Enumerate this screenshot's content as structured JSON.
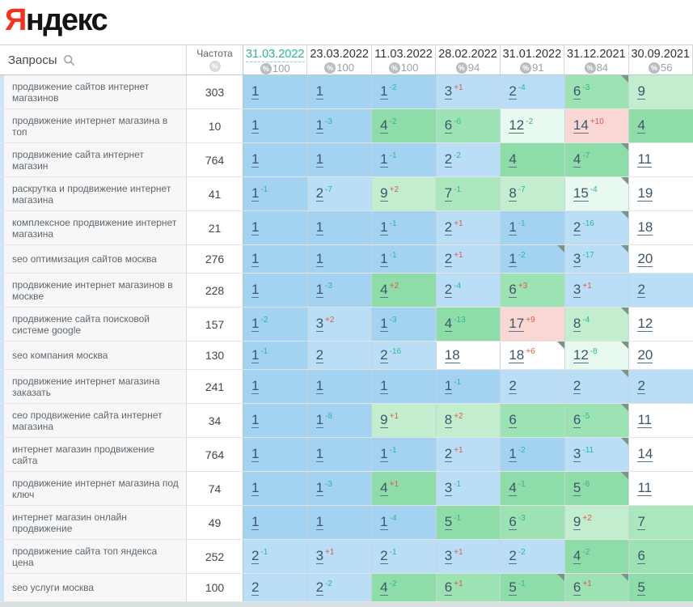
{
  "logo": {
    "first_letter": "Я",
    "rest": "ндекс"
  },
  "colors": {
    "b1": "#a4d3f1",
    "b2": "#b9def6",
    "g4": "#8edca8",
    "g6": "#9de2b3",
    "g7": "#abe6bd",
    "g8": "#c3edcf",
    "m": "#e8f9ef",
    "w": "#ffffff",
    "p": "#f8d7d4",
    "delta_improve": "#2fb59b",
    "delta_drop": "#e0584d",
    "selected_date": "#2bb39c",
    "row_accent": "#cfe3f5",
    "corner_marker": "#7a9587"
  },
  "table": {
    "queries_header": "Запросы",
    "freq_header": "Частота",
    "columns": [
      {
        "date": "31.03.2022",
        "percent": "100",
        "selected": true
      },
      {
        "date": "23.03.2022",
        "percent": "100",
        "selected": false
      },
      {
        "date": "11.03.2022",
        "percent": "100",
        "selected": false
      },
      {
        "date": "28.02.2022",
        "percent": "94",
        "selected": false
      },
      {
        "date": "31.01.2022",
        "percent": "91",
        "selected": false
      },
      {
        "date": "31.12.2021",
        "percent": "84",
        "selected": false
      },
      {
        "date": "30.09.2021",
        "percent": "56",
        "selected": false
      }
    ],
    "rows": [
      {
        "query": "продвижение сайтов интернет магазинов",
        "freq": "303",
        "cells": [
          {
            "v": "1",
            "bg": "b1"
          },
          {
            "v": "1",
            "bg": "b1"
          },
          {
            "v": "1",
            "d": "-2",
            "bg": "b1"
          },
          {
            "v": "3",
            "d": "+1",
            "bg": "b2"
          },
          {
            "v": "2",
            "d": "-4",
            "bg": "b2"
          },
          {
            "v": "6",
            "d": "-3",
            "bg": "g6",
            "t": 1
          },
          {
            "v": "9",
            "bg": "g8"
          }
        ]
      },
      {
        "query": "продвижение интернет магазина в топ",
        "freq": "10",
        "cells": [
          {
            "v": "1",
            "bg": "b1"
          },
          {
            "v": "1",
            "d": "-3",
            "bg": "b1"
          },
          {
            "v": "4",
            "d": "-2",
            "bg": "g4"
          },
          {
            "v": "6",
            "d": "-6",
            "bg": "g6"
          },
          {
            "v": "12",
            "d": "-2",
            "bg": "m"
          },
          {
            "v": "14",
            "d": "+10",
            "bg": "p"
          },
          {
            "v": "4",
            "bg": "g4"
          }
        ]
      },
      {
        "query": "продвижение сайта интернет магазин",
        "freq": "764",
        "cells": [
          {
            "v": "1",
            "bg": "b1"
          },
          {
            "v": "1",
            "bg": "b1"
          },
          {
            "v": "1",
            "d": "-1",
            "bg": "b1"
          },
          {
            "v": "2",
            "d": "-2",
            "bg": "b2"
          },
          {
            "v": "4",
            "bg": "g4"
          },
          {
            "v": "4",
            "d": "-7",
            "bg": "g4",
            "t": 1
          },
          {
            "v": "11",
            "bg": "w"
          }
        ]
      },
      {
        "query": "раскрутка и продвижение интернет магазина",
        "freq": "41",
        "cells": [
          {
            "v": "1",
            "d": "-1",
            "bg": "b1"
          },
          {
            "v": "2",
            "d": "-7",
            "bg": "b2"
          },
          {
            "v": "9",
            "d": "+2",
            "bg": "g8"
          },
          {
            "v": "7",
            "d": "-1",
            "bg": "g7"
          },
          {
            "v": "8",
            "d": "-7",
            "bg": "g8"
          },
          {
            "v": "15",
            "d": "-4",
            "bg": "m",
            "t": 1
          },
          {
            "v": "19",
            "bg": "w"
          }
        ]
      },
      {
        "query": "комплексное продвижение интернет магазина",
        "freq": "21",
        "cells": [
          {
            "v": "1",
            "bg": "b1"
          },
          {
            "v": "1",
            "bg": "b1"
          },
          {
            "v": "1",
            "d": "-1",
            "bg": "b1"
          },
          {
            "v": "2",
            "d": "+1",
            "bg": "b2"
          },
          {
            "v": "1",
            "d": "-1",
            "bg": "b1"
          },
          {
            "v": "2",
            "d": "-16",
            "bg": "b2",
            "t": 1
          },
          {
            "v": "18",
            "bg": "w"
          }
        ]
      },
      {
        "query": "seo оптимизация сайтов москва",
        "freq": "276",
        "cells": [
          {
            "v": "1",
            "bg": "b1"
          },
          {
            "v": "1",
            "bg": "b1"
          },
          {
            "v": "1",
            "d": "-1",
            "bg": "b1"
          },
          {
            "v": "2",
            "d": "+1",
            "bg": "b2"
          },
          {
            "v": "1",
            "d": "-2",
            "bg": "b1",
            "t": 1
          },
          {
            "v": "3",
            "d": "-17",
            "bg": "b2",
            "t": 1
          },
          {
            "v": "20",
            "bg": "w"
          }
        ]
      },
      {
        "query": "продвижение интернет магазинов в москве",
        "freq": "228",
        "cells": [
          {
            "v": "1",
            "bg": "b1"
          },
          {
            "v": "1",
            "d": "-3",
            "bg": "b1"
          },
          {
            "v": "4",
            "d": "+2",
            "bg": "g4"
          },
          {
            "v": "2",
            "d": "-4",
            "bg": "b2"
          },
          {
            "v": "6",
            "d": "+3",
            "bg": "g6"
          },
          {
            "v": "3",
            "d": "+1",
            "bg": "b2"
          },
          {
            "v": "2",
            "bg": "b2"
          }
        ]
      },
      {
        "query": "продвижение сайта поисковой системе google",
        "freq": "157",
        "cells": [
          {
            "v": "1",
            "d": "-2",
            "bg": "b1"
          },
          {
            "v": "3",
            "d": "+2",
            "bg": "b2"
          },
          {
            "v": "1",
            "d": "-3",
            "bg": "b1"
          },
          {
            "v": "4",
            "d": "-13",
            "bg": "g4"
          },
          {
            "v": "17",
            "d": "+9",
            "bg": "p"
          },
          {
            "v": "8",
            "d": "-4",
            "bg": "g8",
            "t": 1
          },
          {
            "v": "12",
            "bg": "w"
          }
        ]
      },
      {
        "query": "seo компания москва",
        "freq": "130",
        "cells": [
          {
            "v": "1",
            "d": "-1",
            "bg": "b1"
          },
          {
            "v": "2",
            "bg": "b2"
          },
          {
            "v": "2",
            "d": "-16",
            "bg": "b2"
          },
          {
            "v": "18",
            "bg": "w"
          },
          {
            "v": "18",
            "d": "+6",
            "bg": "w",
            "t": 1
          },
          {
            "v": "12",
            "d": "-8",
            "bg": "m",
            "t": 1
          },
          {
            "v": "20",
            "bg": "w"
          }
        ]
      },
      {
        "query": "продвижение интернет магазина заказать",
        "freq": "241",
        "cells": [
          {
            "v": "1",
            "bg": "b1"
          },
          {
            "v": "1",
            "bg": "b1"
          },
          {
            "v": "1",
            "bg": "b1"
          },
          {
            "v": "1",
            "d": "-1",
            "bg": "b1"
          },
          {
            "v": "2",
            "bg": "b2"
          },
          {
            "v": "2",
            "bg": "b2",
            "t": 1
          },
          {
            "v": "2",
            "bg": "b2"
          }
        ]
      },
      {
        "query": "сео продвижение сайта интернет магазина",
        "freq": "34",
        "cells": [
          {
            "v": "1",
            "bg": "b1"
          },
          {
            "v": "1",
            "d": "-8",
            "bg": "b1"
          },
          {
            "v": "9",
            "d": "+1",
            "bg": "g8"
          },
          {
            "v": "8",
            "d": "+2",
            "bg": "g8"
          },
          {
            "v": "6",
            "bg": "g6"
          },
          {
            "v": "6",
            "d": "-5",
            "bg": "g6",
            "t": 1
          },
          {
            "v": "11",
            "bg": "w"
          }
        ]
      },
      {
        "query": "интернет магазин продвижение сайта",
        "freq": "764",
        "cells": [
          {
            "v": "1",
            "bg": "b1"
          },
          {
            "v": "1",
            "bg": "b1"
          },
          {
            "v": "1",
            "d": "-1",
            "bg": "b1"
          },
          {
            "v": "2",
            "d": "+1",
            "bg": "b2"
          },
          {
            "v": "1",
            "d": "-2",
            "bg": "b1"
          },
          {
            "v": "3",
            "d": "-11",
            "bg": "b2",
            "t": 1
          },
          {
            "v": "14",
            "bg": "w"
          }
        ]
      },
      {
        "query": "продвижение интернет магазина под ключ",
        "freq": "74",
        "cells": [
          {
            "v": "1",
            "bg": "b1"
          },
          {
            "v": "1",
            "d": "-3",
            "bg": "b1"
          },
          {
            "v": "4",
            "d": "+1",
            "bg": "g4"
          },
          {
            "v": "3",
            "d": "-1",
            "bg": "b2"
          },
          {
            "v": "4",
            "d": "-1",
            "bg": "g4"
          },
          {
            "v": "5",
            "d": "-6",
            "bg": "g4",
            "t": 1
          },
          {
            "v": "11",
            "bg": "w"
          }
        ]
      },
      {
        "query": "интернет магазин онлайн продвижение",
        "freq": "49",
        "cells": [
          {
            "v": "1",
            "bg": "b1"
          },
          {
            "v": "1",
            "bg": "b1"
          },
          {
            "v": "1",
            "d": "-4",
            "bg": "b1"
          },
          {
            "v": "5",
            "d": "-1",
            "bg": "g4"
          },
          {
            "v": "6",
            "d": "-3",
            "bg": "g6"
          },
          {
            "v": "9",
            "d": "+2",
            "bg": "g8"
          },
          {
            "v": "7",
            "bg": "g7"
          }
        ]
      },
      {
        "query": "продвижение сайта топ яндекса цена",
        "freq": "252",
        "cells": [
          {
            "v": "2",
            "d": "-1",
            "bg": "b2"
          },
          {
            "v": "3",
            "d": "+1",
            "bg": "b2"
          },
          {
            "v": "2",
            "d": "-1",
            "bg": "b2"
          },
          {
            "v": "3",
            "d": "+1",
            "bg": "b2"
          },
          {
            "v": "2",
            "d": "-2",
            "bg": "b2"
          },
          {
            "v": "4",
            "d": "-2",
            "bg": "g4"
          },
          {
            "v": "6",
            "bg": "g6"
          }
        ]
      },
      {
        "query": "seo услуги москва",
        "freq": "100",
        "cells": [
          {
            "v": "2",
            "bg": "b2"
          },
          {
            "v": "2",
            "d": "-2",
            "bg": "b2"
          },
          {
            "v": "4",
            "d": "-2",
            "bg": "g4"
          },
          {
            "v": "6",
            "d": "+1",
            "bg": "g6"
          },
          {
            "v": "5",
            "d": "-1",
            "bg": "g4",
            "t": 1
          },
          {
            "v": "6",
            "d": "+1",
            "bg": "g6",
            "t": 1
          },
          {
            "v": "5",
            "bg": "g4"
          }
        ]
      }
    ]
  }
}
